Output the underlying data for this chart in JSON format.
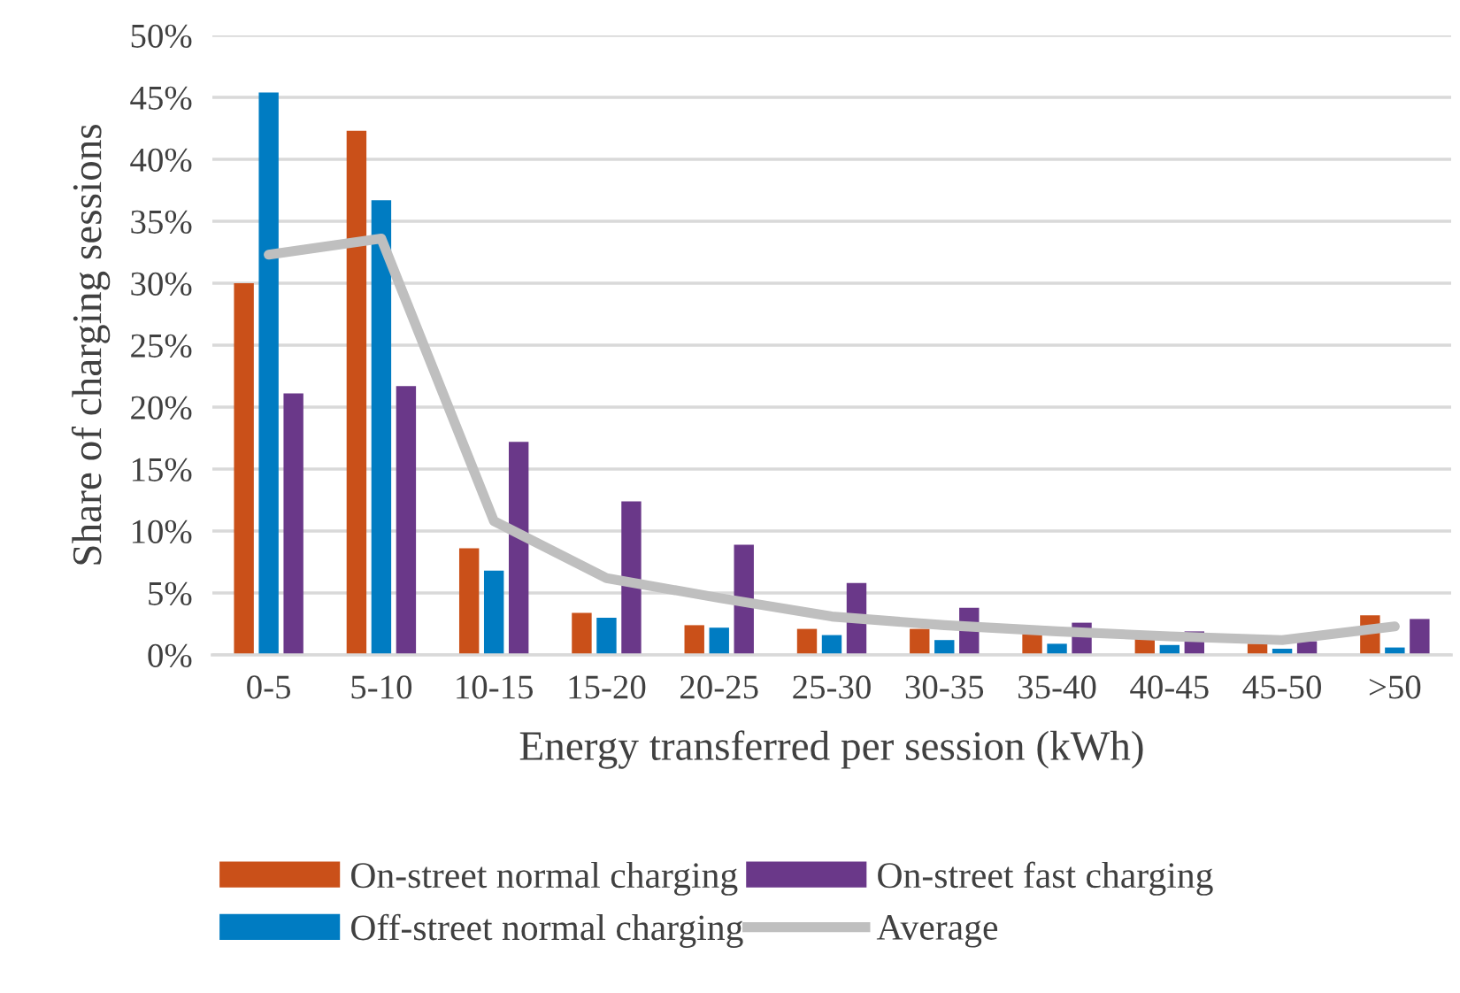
{
  "chart_data": {
    "type": "bar",
    "xlabel": "Energy transferred per session (kWh)",
    "ylabel": "Share of charging sessions",
    "categories": [
      "0-5",
      "5-10",
      "10-15",
      "15-20",
      "20-25",
      "25-30",
      "30-35",
      "35-40",
      "40-45",
      "45-50",
      ">50"
    ],
    "series": [
      {
        "name": "On-street normal charging",
        "color": "#ca5019",
        "values": [
          30.0,
          42.3,
          8.6,
          3.4,
          2.4,
          2.1,
          2.1,
          1.7,
          1.5,
          0.9,
          3.2
        ]
      },
      {
        "name": "Off-street normal charging",
        "color": "#007cc2",
        "values": [
          45.4,
          36.7,
          6.8,
          3.0,
          2.2,
          1.6,
          1.2,
          0.9,
          0.8,
          0.5,
          0.6
        ]
      },
      {
        "name": "On-street fast charging",
        "color": "#6a3889",
        "values": [
          21.1,
          21.7,
          17.2,
          12.4,
          8.9,
          5.8,
          3.8,
          2.6,
          1.9,
          1.1,
          2.9
        ]
      },
      {
        "name": "Average",
        "type": "line",
        "color": "#bfbfbf",
        "values": [
          32.3,
          33.6,
          10.8,
          6.2,
          4.6,
          3.1,
          2.4,
          1.9,
          1.5,
          1.2,
          2.3
        ]
      }
    ],
    "ylim": [
      0,
      50
    ],
    "yticks": [
      {
        "value": 0,
        "label": "0%"
      },
      {
        "value": 5,
        "label": "5%"
      },
      {
        "value": 10,
        "label": "10%"
      },
      {
        "value": 15,
        "label": "15%"
      },
      {
        "value": 20,
        "label": "20%"
      },
      {
        "value": 25,
        "label": "25%"
      },
      {
        "value": 30,
        "label": "30%"
      },
      {
        "value": 35,
        "label": "35%"
      },
      {
        "value": 40,
        "label": "40%"
      },
      {
        "value": 45,
        "label": "45%"
      },
      {
        "value": 50,
        "label": "50%"
      }
    ],
    "grid": "y",
    "legend": "bottom"
  }
}
